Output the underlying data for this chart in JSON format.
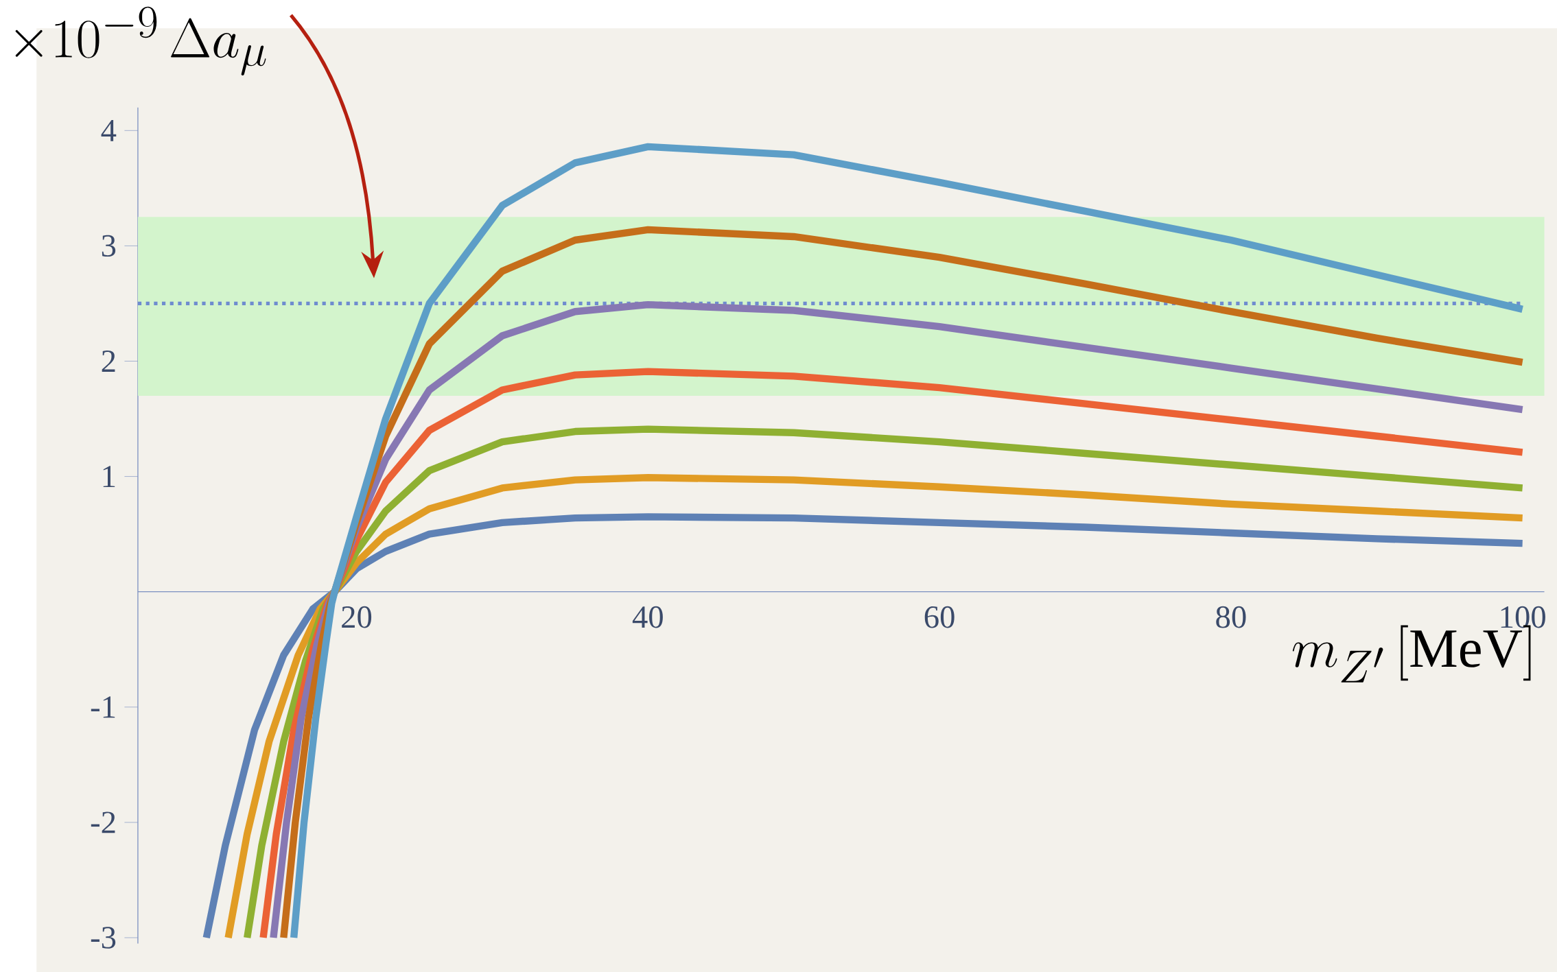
{
  "chart_data": {
    "type": "line",
    "xlabel": "m_{Z'}\\,[\\mathrm{MeV}]",
    "ylabel": "\\times 10^{-9}\\,\\Delta a_\\mu",
    "xlim": [
      5,
      101.5
    ],
    "ylim": [
      -3.05,
      4.2
    ],
    "xticks": [
      20,
      40,
      60,
      80,
      100
    ],
    "yticks": [
      -3,
      -2,
      -1,
      1,
      2,
      3,
      4
    ],
    "line_style": "solid",
    "marker": "none",
    "bands": [
      {
        "axis": "y",
        "from": 1.7,
        "to": 3.25,
        "color": "#d3f4cc"
      }
    ],
    "ref_lines": [
      {
        "axis": "y",
        "value": 2.5,
        "color": "#6f8ccf",
        "line_style": "dotted"
      }
    ],
    "series": [
      {
        "color": "#5e81b5",
        "x": [
          9.7,
          11,
          13,
          15,
          17,
          18.5,
          20,
          22,
          25,
          30,
          35,
          40,
          50,
          60,
          70,
          80,
          90,
          100
        ],
        "values": [
          -3,
          -2.2,
          -1.2,
          -0.55,
          -0.15,
          0,
          0.2,
          0.35,
          0.5,
          0.6,
          0.64,
          0.65,
          0.64,
          0.6,
          0.56,
          0.51,
          0.46,
          0.42
        ]
      },
      {
        "color": "#e19c24",
        "x": [
          11.2,
          12.5,
          14,
          16,
          17.5,
          18.5,
          20,
          22,
          25,
          30,
          35,
          40,
          50,
          60,
          70,
          80,
          90,
          100
        ],
        "values": [
          -3,
          -2.1,
          -1.3,
          -0.55,
          -0.15,
          0,
          0.25,
          0.5,
          0.72,
          0.9,
          0.97,
          0.99,
          0.97,
          0.91,
          0.84,
          0.76,
          0.7,
          0.64
        ]
      },
      {
        "color": "#8fb032",
        "x": [
          12.5,
          13.5,
          15,
          16.5,
          17.7,
          18.5,
          20,
          22,
          25,
          30,
          35,
          40,
          50,
          60,
          70,
          80,
          90,
          100
        ],
        "values": [
          -3,
          -2.2,
          -1.3,
          -0.6,
          -0.15,
          0,
          0.35,
          0.7,
          1.05,
          1.3,
          1.39,
          1.41,
          1.38,
          1.3,
          1.2,
          1.1,
          1.0,
          0.9
        ]
      },
      {
        "color": "#eb6235",
        "x": [
          13.6,
          14.5,
          15.7,
          17,
          18,
          18.5,
          20,
          22,
          25,
          30,
          35,
          40,
          50,
          60,
          70,
          80,
          90,
          100
        ],
        "values": [
          -3,
          -2.1,
          -1.2,
          -0.5,
          -0.1,
          0,
          0.45,
          0.95,
          1.4,
          1.75,
          1.88,
          1.91,
          1.87,
          1.77,
          1.63,
          1.49,
          1.35,
          1.21
        ]
      },
      {
        "color": "#8778b3",
        "x": [
          14.3,
          15.2,
          16.2,
          17.3,
          18.1,
          18.5,
          20,
          22,
          25,
          30,
          35,
          40,
          50,
          60,
          70,
          80,
          90,
          100
        ],
        "values": [
          -3,
          -2.0,
          -1.1,
          -0.45,
          -0.1,
          0,
          0.55,
          1.15,
          1.75,
          2.22,
          2.43,
          2.49,
          2.44,
          2.3,
          2.12,
          1.94,
          1.76,
          1.58
        ]
      },
      {
        "color": "#c56e1a",
        "x": [
          15.0,
          15.8,
          16.7,
          17.6,
          18.2,
          18.5,
          20,
          22,
          25,
          30,
          35,
          40,
          50,
          60,
          70,
          80,
          90,
          100
        ],
        "values": [
          -3,
          -2.0,
          -1.1,
          -0.45,
          -0.1,
          0,
          0.6,
          1.35,
          2.15,
          2.78,
          3.05,
          3.14,
          3.08,
          2.9,
          2.67,
          2.43,
          2.2,
          1.99
        ]
      },
      {
        "color": "#5d9ec7",
        "x": [
          15.7,
          16.4,
          17.2,
          17.9,
          18.3,
          18.5,
          20,
          22,
          25,
          30,
          35,
          40,
          50,
          60,
          70,
          80,
          90,
          100
        ],
        "values": [
          -3,
          -2.0,
          -1.1,
          -0.45,
          -0.1,
          0,
          0.65,
          1.5,
          2.5,
          3.35,
          3.72,
          3.86,
          3.79,
          3.55,
          3.3,
          3.05,
          2.75,
          2.45
        ]
      }
    ]
  }
}
